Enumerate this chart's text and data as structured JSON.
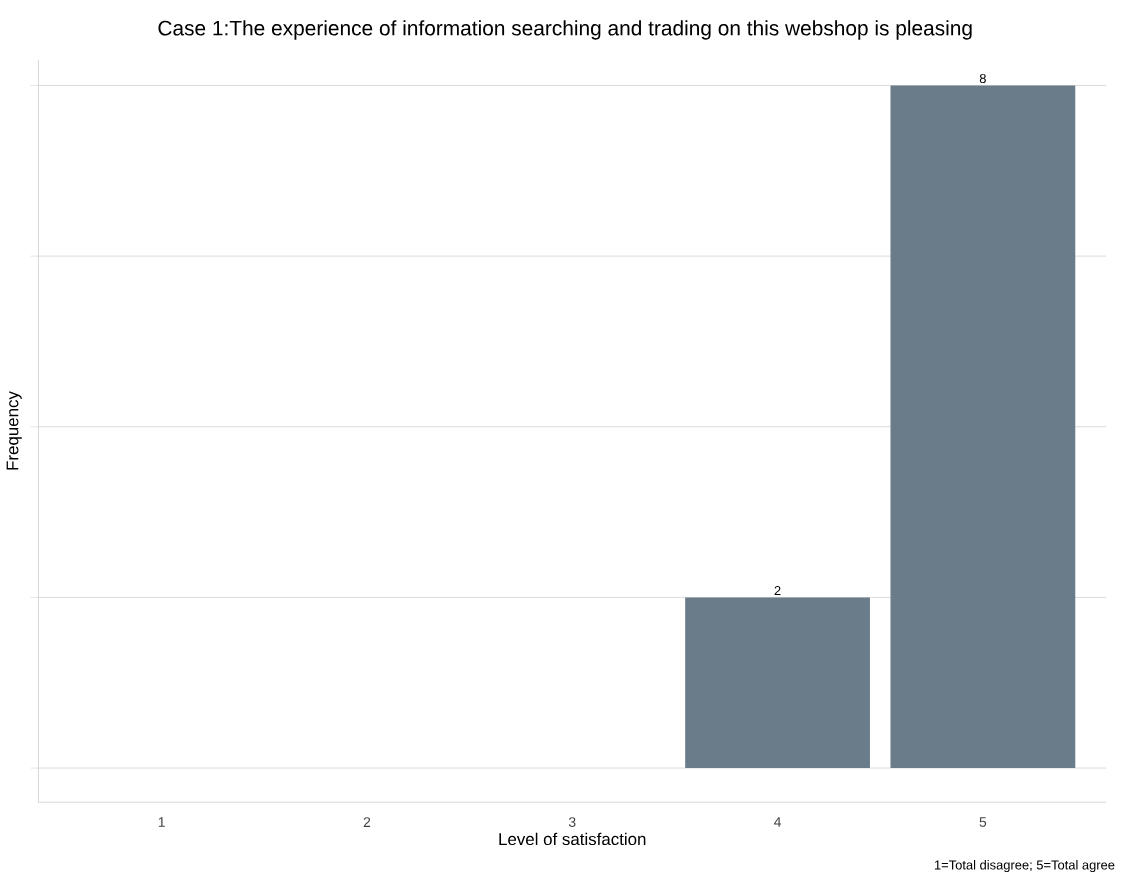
{
  "chart_data": {
    "type": "bar",
    "title": "Case 1:The experience of information searching and trading on this webshop is pleasing",
    "xlabel": "Level of satisfaction",
    "ylabel": "Frequency",
    "categories": [
      "1",
      "2",
      "3",
      "4",
      "5"
    ],
    "values": [
      0,
      0,
      0,
      2,
      8
    ],
    "value_labels": [
      null,
      null,
      null,
      "2",
      "8"
    ],
    "color": "#6a7b8a",
    "ylim": [
      -0.4,
      8.3
    ],
    "yticks": [
      {
        "value": 0,
        "label": null
      },
      {
        "value": 2,
        "label": null
      },
      {
        "value": 4,
        "label": null
      },
      {
        "value": 6,
        "label": null
      },
      {
        "value": 8,
        "label": null
      }
    ],
    "tick_labels": "x",
    "grid": "y",
    "annotations": [
      "1=Total disagree; 5=Total agree"
    ]
  }
}
